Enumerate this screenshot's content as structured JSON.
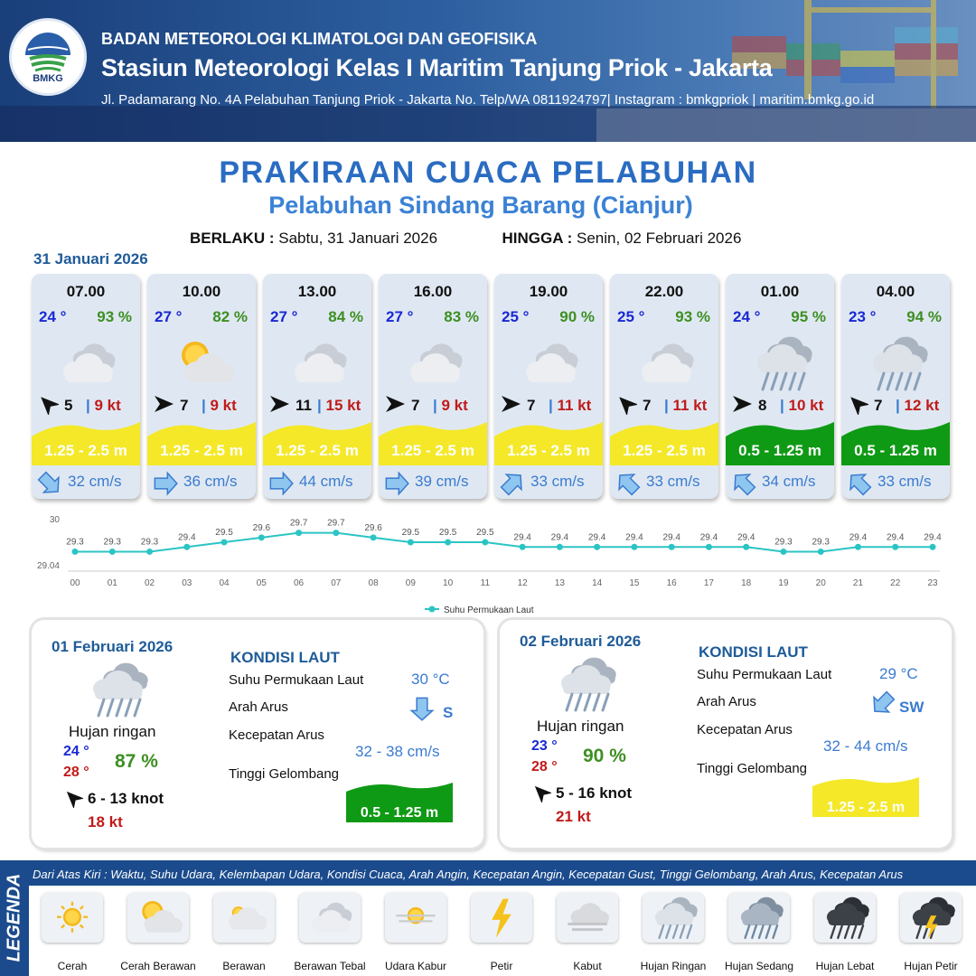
{
  "header": {
    "line1": "BADAN METEOROLOGI KLIMATOLOGI DAN GEOFISIKA",
    "line2": "Stasiun Meteorologi Kelas I Maritim Tanjung Priok - Jakarta",
    "line3": "Jl. Padamarang No. 4A Pelabuhan Tanjung Priok - Jakarta No. Telp/WA 0811924797| Instagram : bmkgpriok | maritim.bmkg.go.id",
    "logo_text": "BMKG"
  },
  "title": "PRAKIRAAN CUACA PELABUHAN",
  "subtitle": "Pelabuhan Sindang Barang (Cianjur)",
  "validity": {
    "from_label": "BERLAKU :",
    "from": "Sabtu, 31 Januari 2026",
    "to_label": "HINGGA :",
    "to": "Senin, 02 Februari 2026"
  },
  "date0": "31 Januari 2026",
  "cards": [
    {
      "time": "07.00",
      "temp": "24 °",
      "rh": "93 %",
      "icon": "berawan-tebal-icon",
      "wind_dir": "northwest",
      "wind": "5",
      "gust": "9 kt",
      "wave": "1.25 - 2.5 m",
      "wave_color": "#f4e829",
      "cur_dir": "southeast",
      "cur": "32 cm/s"
    },
    {
      "time": "10.00",
      "temp": "27 °",
      "rh": "82 %",
      "icon": "cerah-berawan-icon",
      "wind_dir": "east",
      "wind": "7",
      "gust": "9 kt",
      "wave": "1.25 - 2.5 m",
      "wave_color": "#f4e829",
      "cur_dir": "east",
      "cur": "36 cm/s"
    },
    {
      "time": "13.00",
      "temp": "27 °",
      "rh": "84 %",
      "icon": "berawan-tebal-icon",
      "wind_dir": "east",
      "wind": "11",
      "gust": "15 kt",
      "wave": "1.25 - 2.5 m",
      "wave_color": "#f4e829",
      "cur_dir": "east",
      "cur": "44 cm/s"
    },
    {
      "time": "16.00",
      "temp": "27 °",
      "rh": "83 %",
      "icon": "berawan-tebal-icon",
      "wind_dir": "east",
      "wind": "7",
      "gust": "9 kt",
      "wave": "1.25 - 2.5 m",
      "wave_color": "#f4e829",
      "cur_dir": "east",
      "cur": "39 cm/s"
    },
    {
      "time": "19.00",
      "temp": "25 °",
      "rh": "90 %",
      "icon": "berawan-tebal-icon",
      "wind_dir": "east",
      "wind": "7",
      "gust": "11 kt",
      "wave": "1.25 - 2.5 m",
      "wave_color": "#f4e829",
      "cur_dir": "northeast",
      "cur": "33 cm/s"
    },
    {
      "time": "22.00",
      "temp": "25 °",
      "rh": "93 %",
      "icon": "berawan-tebal-icon",
      "wind_dir": "northwest",
      "wind": "7",
      "gust": "11 kt",
      "wave": "1.25 - 2.5 m",
      "wave_color": "#f4e829",
      "cur_dir": "northwest",
      "cur": "33 cm/s"
    },
    {
      "time": "01.00",
      "temp": "24 °",
      "rh": "95 %",
      "icon": "hujan-ringan-icon",
      "wind_dir": "east",
      "wind": "8",
      "gust": "10 kt",
      "wave": "0.5 - 1.25 m",
      "wave_color": "#0f9a15",
      "cur_dir": "northwest",
      "cur": "34 cm/s"
    },
    {
      "time": "04.00",
      "temp": "23 °",
      "rh": "94 %",
      "icon": "hujan-ringan-icon",
      "wind_dir": "northwest",
      "wind": "7",
      "gust": "12 kt",
      "wave": "0.5 - 1.25 m",
      "wave_color": "#0f9a15",
      "cur_dir": "northwest",
      "cur": "33 cm/s"
    }
  ],
  "sst_chart": {
    "chart_data": {
      "type": "line",
      "x": [
        "00",
        "01",
        "02",
        "03",
        "04",
        "05",
        "06",
        "07",
        "08",
        "09",
        "10",
        "11",
        "12",
        "13",
        "14",
        "15",
        "16",
        "17",
        "18",
        "19",
        "20",
        "21",
        "22",
        "23"
      ],
      "series": [
        {
          "name": "Suhu Permukaan Laut",
          "values": [
            29.3,
            29.3,
            29.3,
            29.4,
            29.5,
            29.6,
            29.7,
            29.7,
            29.6,
            29.5,
            29.5,
            29.5,
            29.4,
            29.4,
            29.4,
            29.4,
            29.4,
            29.4,
            29.4,
            29.3,
            29.3,
            29.4,
            29.4,
            29.4
          ]
        }
      ],
      "ylim": [
        29.04,
        30
      ],
      "yticks": [
        "30",
        "29.04"
      ],
      "legend": "bottom-center",
      "color": "#2bc4c4"
    }
  },
  "days": [
    {
      "date": "01 Februari 2026",
      "weather": "Hujan ringan",
      "icon": "hujan-ringan-icon",
      "tmin": "24 °",
      "tmax": "28 °",
      "rh": "87 %",
      "wind_dir": "northwest",
      "wind": "6  - 13 knot",
      "gust": "18 kt",
      "kondisi": "KONDISI LAUT",
      "sst_label": "Suhu Permukaan Laut",
      "sst": "30 °C",
      "arus_label": "Arah Arus",
      "arus_dir": "south",
      "arus": "S",
      "kec_label": "Kecepatan Arus",
      "kec": "32  - 38 cm/s",
      "tg_label": "Tinggi Gelombang",
      "wave": "0.5 - 1.25 m",
      "wave_color": "#0f9a15"
    },
    {
      "date": "02 Februari 2026",
      "weather": "Hujan ringan",
      "icon": "hujan-ringan-icon",
      "tmin": "23 °",
      "tmax": "28 °",
      "rh": "90 %",
      "wind_dir": "northwest",
      "wind": "5  - 16 knot",
      "gust": "21 kt",
      "kondisi": "KONDISI LAUT",
      "sst_label": "Suhu Permukaan Laut",
      "sst": "29 °C",
      "arus_label": "Arah Arus",
      "arus_dir": "southwest",
      "arus": "SW",
      "kec_label": "Kecepatan Arus",
      "kec": "32 - 44 cm/s",
      "tg_label": "Tinggi Gelombang",
      "wave": "1.25 - 2.5 m",
      "wave_color": "#f4e829"
    }
  ],
  "legend": {
    "title": "LEGENDA",
    "description": "Dari Atas Kiri : Waktu, Suhu Udara, Kelembapan Udara, Kondisi Cuaca, Arah Angin, Kecepatan Angin, Kecepatan Gust, Tinggi Gelombang, Arah Arus, Kecepatan Arus",
    "items": [
      {
        "label": "Cerah",
        "icon": "cerah-icon"
      },
      {
        "label": "Cerah Berawan",
        "icon": "cerah-berawan-icon"
      },
      {
        "label": "Berawan",
        "icon": "berawan-icon"
      },
      {
        "label": "Berawan Tebal",
        "icon": "berawan-tebal-icon"
      },
      {
        "label": "Udara Kabur",
        "icon": "udara-kabur-icon"
      },
      {
        "label": "Petir",
        "icon": "petir-icon"
      },
      {
        "label": "Kabut",
        "icon": "kabut-icon"
      },
      {
        "label": "Hujan Ringan",
        "icon": "hujan-ringan-icon"
      },
      {
        "label": "Hujan Sedang",
        "icon": "hujan-sedang-icon"
      },
      {
        "label": "Hujan Lebat",
        "icon": "hujan-lebat-icon"
      },
      {
        "label": "Hujan Petir",
        "icon": "hujan-petir-icon"
      }
    ]
  }
}
